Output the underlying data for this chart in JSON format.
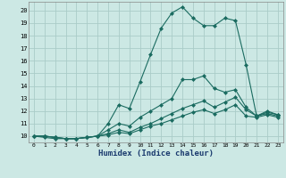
{
  "xlabel": "Humidex (Indice chaleur)",
  "bg_color": "#cce8e4",
  "grid_color": "#aaccc8",
  "line_color": "#1a6b60",
  "x_values": [
    0,
    1,
    2,
    3,
    4,
    5,
    6,
    7,
    8,
    9,
    10,
    11,
    12,
    13,
    14,
    15,
    16,
    17,
    18,
    19,
    20,
    21,
    22,
    23
  ],
  "series1": [
    10,
    9.9,
    9.8,
    9.8,
    9.8,
    9.9,
    10.0,
    11.0,
    12.5,
    12.2,
    14.3,
    16.5,
    18.6,
    19.8,
    20.3,
    19.4,
    18.8,
    18.8,
    19.4,
    19.2,
    15.7,
    11.6,
    12.0,
    11.7
  ],
  "series2": [
    10,
    10,
    9.9,
    9.8,
    9.8,
    9.9,
    10.0,
    10.5,
    11.0,
    10.8,
    11.5,
    12.0,
    12.5,
    13.0,
    14.5,
    14.5,
    14.8,
    13.8,
    13.5,
    13.7,
    12.3,
    11.6,
    11.9,
    11.7
  ],
  "series3": [
    10,
    10,
    9.9,
    9.8,
    9.8,
    9.9,
    10.0,
    10.2,
    10.5,
    10.3,
    10.7,
    11.0,
    11.4,
    11.8,
    12.2,
    12.5,
    12.8,
    12.3,
    12.7,
    13.1,
    12.1,
    11.6,
    11.8,
    11.6
  ],
  "series4": [
    10,
    10,
    9.9,
    9.8,
    9.8,
    9.9,
    10.0,
    10.1,
    10.3,
    10.2,
    10.5,
    10.8,
    11.0,
    11.3,
    11.6,
    11.9,
    12.1,
    11.8,
    12.1,
    12.5,
    11.6,
    11.5,
    11.7,
    11.5
  ],
  "ylim_min": 9.5,
  "ylim_max": 20.7,
  "yticks": [
    10,
    11,
    12,
    13,
    14,
    15,
    16,
    17,
    18,
    19,
    20
  ],
  "xticks": [
    0,
    1,
    2,
    3,
    4,
    5,
    6,
    7,
    8,
    9,
    10,
    11,
    12,
    13,
    14,
    15,
    16,
    17,
    18,
    19,
    20,
    21,
    22,
    23
  ],
  "marker": "D",
  "marker_size": 2,
  "line_width": 0.8
}
